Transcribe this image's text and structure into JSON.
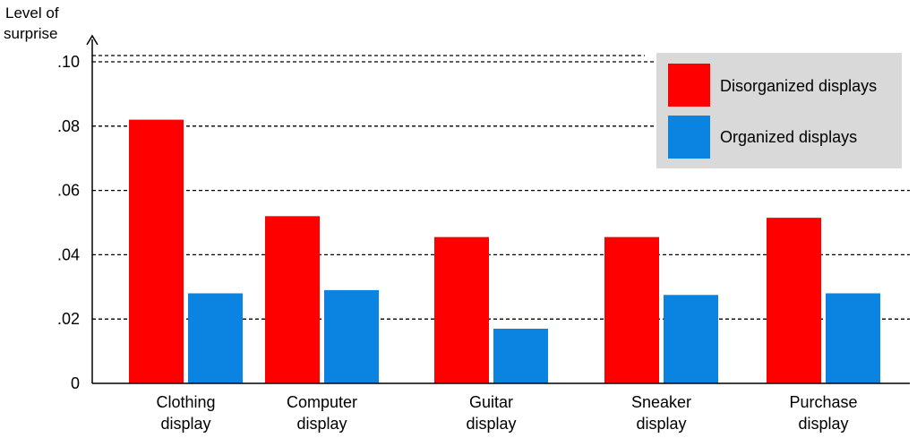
{
  "chart_data": {
    "type": "bar",
    "ylabel": [
      "Level of",
      "surprise"
    ],
    "ylim": [
      0,
      0.11
    ],
    "yticks": [
      {
        "value": 0,
        "label": "0"
      },
      {
        "value": 0.02,
        "label": ".02"
      },
      {
        "value": 0.04,
        "label": ".04"
      },
      {
        "value": 0.06,
        "label": ".06"
      },
      {
        "value": 0.08,
        "label": ".08"
      },
      {
        "value": 0.1,
        "label": ".10"
      }
    ],
    "grid": true,
    "categories": [
      [
        "Clothing",
        "display"
      ],
      [
        "Computer",
        "display"
      ],
      [
        "Guitar",
        "display"
      ],
      [
        "Sneaker",
        "display"
      ],
      [
        "Purchase",
        "display"
      ]
    ],
    "series": [
      {
        "name": "Disorganized displays",
        "color": "#ff0000",
        "values": [
          0.082,
          0.052,
          0.0455,
          0.0455,
          0.0515
        ]
      },
      {
        "name": "Organized displays",
        "color": "#0a84e0",
        "values": [
          0.028,
          0.029,
          0.017,
          0.0275,
          0.028
        ]
      }
    ],
    "legend": {
      "position": "top-right",
      "background": "#d9d9d9"
    }
  }
}
